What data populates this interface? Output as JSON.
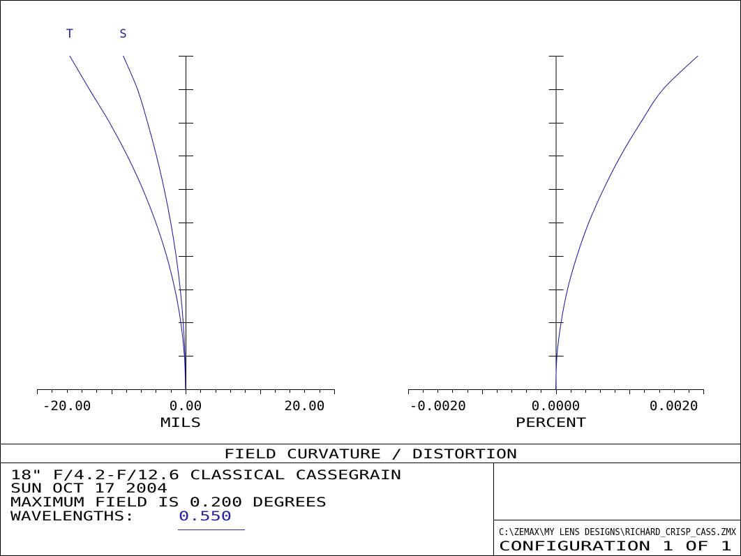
{
  "chart_data": [
    {
      "type": "line",
      "title": "",
      "xlabel": "MILS",
      "ylabel": "",
      "xlim": [
        -25,
        25
      ],
      "ylim": [
        0,
        1
      ],
      "x_tick_labels": [
        "-20.00",
        "0.00",
        "20.00"
      ],
      "x_tick_values": [
        -20,
        0,
        20
      ],
      "series": [
        {
          "name": "T",
          "x": [
            0.0,
            -0.2,
            -0.8,
            -1.8,
            -3.2,
            -5.0,
            -7.2,
            -9.8,
            -12.8,
            -16.2,
            -19.5
          ],
          "y": [
            0.0,
            0.1,
            0.2,
            0.3,
            0.4,
            0.5,
            0.6,
            0.7,
            0.8,
            0.9,
            1.0
          ]
        },
        {
          "name": "S",
          "x": [
            0.0,
            -0.1,
            -0.4,
            -0.9,
            -1.6,
            -2.5,
            -3.6,
            -4.9,
            -6.4,
            -8.1,
            -10.5
          ],
          "y": [
            0.0,
            0.1,
            0.2,
            0.3,
            0.4,
            0.5,
            0.6,
            0.7,
            0.8,
            0.9,
            1.0
          ]
        }
      ]
    },
    {
      "type": "line",
      "title": "",
      "xlabel": "PERCENT",
      "ylabel": "",
      "xlim": [
        -0.0025,
        0.0025
      ],
      "ylim": [
        0,
        1
      ],
      "x_tick_labels": [
        "-0.0020",
        "0.0000",
        "0.0020"
      ],
      "x_tick_values": [
        -0.002,
        0.0,
        0.002
      ],
      "series": [
        {
          "name": "",
          "x": [
            0.0,
            2e-05,
            9e-05,
            0.0002,
            0.00036,
            0.00056,
            0.00081,
            0.0011,
            0.00144,
            0.00182,
            0.00241
          ],
          "y": [
            0.0,
            0.1,
            0.2,
            0.3,
            0.4,
            0.5,
            0.6,
            0.7,
            0.8,
            0.9,
            1.0
          ]
        }
      ]
    }
  ],
  "plot_title": "FIELD CURVATURE / DISTORTION",
  "info": {
    "line1": "18\" F/4.2-F/12.6 CLASSICAL CASSEGRAIN",
    "line2": "SUN OCT 17 2004",
    "line3": "MAXIMUM FIELD IS 0.200 DEGREES",
    "wavelengths_label": "WAVELENGTHS:",
    "wavelength_value": "0.550"
  },
  "file_path": "C:\\ZEMAX\\MY LENS DESIGNS\\RICHARD_CRISP_CASS.ZMX",
  "configuration": "CONFIGURATION 1 OF 1",
  "colors": {
    "curve": "#2323a8",
    "axis": "#000000",
    "background": "#ffffff"
  }
}
